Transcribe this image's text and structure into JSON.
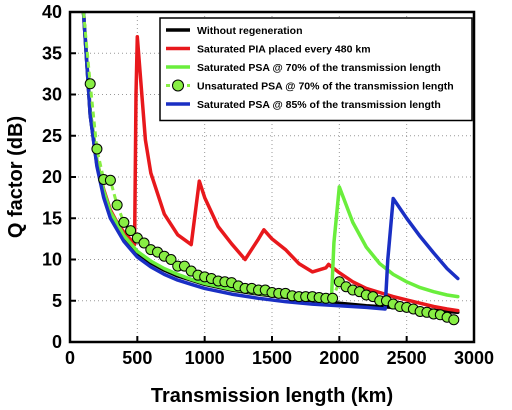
{
  "chart_data": {
    "type": "line",
    "xlabel": "Transmission length (km)",
    "ylabel": "Q factor (dB)",
    "xlim": [
      0,
      3000
    ],
    "ylim": [
      0,
      40
    ],
    "xticks": [
      0,
      500,
      1000,
      1500,
      2000,
      2500,
      3000
    ],
    "yticks": [
      0,
      5,
      10,
      15,
      20,
      25,
      30,
      35,
      40
    ],
    "grid": "dotted",
    "legend_position": "top-right",
    "series": [
      {
        "name": "Without regeneration",
        "color": "#000000",
        "style": "solid",
        "x": [
          100,
          150,
          200,
          250,
          300,
          350,
          400,
          450,
          500,
          600,
          700,
          800,
          900,
          1000,
          1200,
          1400,
          1600,
          1800,
          2000,
          2200,
          2400,
          2600,
          2800,
          2880
        ],
        "y": [
          40,
          27.5,
          21.5,
          18,
          15.6,
          14,
          12.7,
          11.7,
          10.8,
          9.6,
          8.7,
          8.0,
          7.5,
          7.0,
          6.3,
          5.8,
          5.4,
          5.0,
          4.7,
          4.4,
          4.2,
          4.0,
          3.7,
          3.6
        ]
      },
      {
        "name": "Saturated PIA placed every 480 km",
        "color": "#e8181c",
        "style": "solid",
        "x": [
          100,
          150,
          200,
          250,
          300,
          350,
          400,
          450,
          480,
          490,
          500,
          560,
          600,
          700,
          800,
          900,
          960,
          1000,
          1100,
          1200,
          1300,
          1400,
          1440,
          1500,
          1600,
          1700,
          1800,
          1900,
          1920,
          2000,
          2100,
          2200,
          2300,
          2400,
          2500,
          2600,
          2700,
          2800,
          2880
        ],
        "y": [
          40,
          28,
          22,
          18.5,
          16,
          14.5,
          13.3,
          12.4,
          11.8,
          30,
          37,
          24.5,
          20.5,
          15.5,
          13.0,
          11.8,
          19.5,
          17.5,
          14.0,
          11.9,
          10.0,
          12.5,
          13.6,
          12.5,
          11.2,
          9.5,
          8.5,
          9.0,
          9.4,
          8.4,
          7.3,
          6.5,
          6.0,
          5.5,
          5.1,
          4.7,
          4.3,
          4.0,
          3.8
        ]
      },
      {
        "name": "Saturated PSA @ 70% of the transmission length",
        "color": "#6aee3c",
        "style": "solid",
        "x": [
          100,
          150,
          200,
          250,
          300,
          400,
          500,
          600,
          700,
          800,
          900,
          1000,
          1200,
          1400,
          1600,
          1800,
          1940,
          1960,
          2000,
          2100,
          2200,
          2300,
          2400,
          2500,
          2600,
          2700,
          2800,
          2880
        ],
        "y": [
          40,
          28,
          22,
          18.3,
          15.8,
          12.9,
          11.0,
          9.8,
          8.9,
          8.2,
          7.6,
          7.1,
          6.4,
          5.9,
          5.5,
          5.1,
          4.8,
          12,
          18.8,
          14.5,
          11.5,
          9.5,
          8.2,
          7.3,
          6.6,
          6.1,
          5.7,
          5.5
        ]
      },
      {
        "name": "Unsaturated PSA @ 70% of the transmission length",
        "color": "#88ee44",
        "style": "dashed-markers",
        "x": [
          100,
          150,
          200,
          250,
          300,
          350,
          400,
          450,
          500,
          550,
          600,
          650,
          700,
          750,
          800,
          850,
          900,
          950,
          1000,
          1050,
          1100,
          1150,
          1200,
          1250,
          1300,
          1350,
          1400,
          1450,
          1500,
          1550,
          1600,
          1650,
          1700,
          1750,
          1800,
          1850,
          1900,
          1950,
          2000,
          2050,
          2100,
          2150,
          2200,
          2250,
          2300,
          2350,
          2400,
          2450,
          2500,
          2550,
          2600,
          2650,
          2700,
          2750,
          2800,
          2850
        ],
        "y": [
          40,
          31.3,
          23.4,
          19.7,
          19.6,
          16.6,
          14.5,
          13.5,
          12.6,
          12.0,
          11.2,
          10.9,
          10.4,
          10.0,
          9.2,
          9.2,
          8.6,
          8.1,
          7.9,
          7.7,
          7.4,
          7.3,
          7.2,
          6.8,
          6.5,
          6.5,
          6.3,
          6.3,
          6.0,
          5.9,
          5.9,
          5.6,
          5.5,
          5.5,
          5.5,
          5.4,
          5.3,
          5.3,
          7.3,
          6.7,
          6.3,
          6.1,
          5.7,
          5.5,
          5.0,
          5.0,
          4.6,
          4.3,
          4.2,
          4.0,
          3.7,
          3.6,
          3.4,
          3.3,
          3.0,
          2.7
        ]
      },
      {
        "name": "Saturated PSA @ 85% of the transmission length",
        "color": "#1a2fc4",
        "style": "solid",
        "x": [
          100,
          150,
          200,
          250,
          300,
          400,
          500,
          600,
          700,
          800,
          900,
          1000,
          1200,
          1400,
          1600,
          1800,
          2000,
          2200,
          2340,
          2360,
          2400,
          2500,
          2600,
          2700,
          2800,
          2880
        ],
        "y": [
          40,
          27.5,
          21.3,
          17.5,
          15.0,
          12.2,
          10.3,
          9.1,
          8.2,
          7.5,
          7.0,
          6.5,
          5.8,
          5.3,
          4.9,
          4.6,
          4.4,
          4.2,
          4.0,
          10,
          17.4,
          15.0,
          12.8,
          10.8,
          8.9,
          7.7
        ]
      }
    ]
  }
}
